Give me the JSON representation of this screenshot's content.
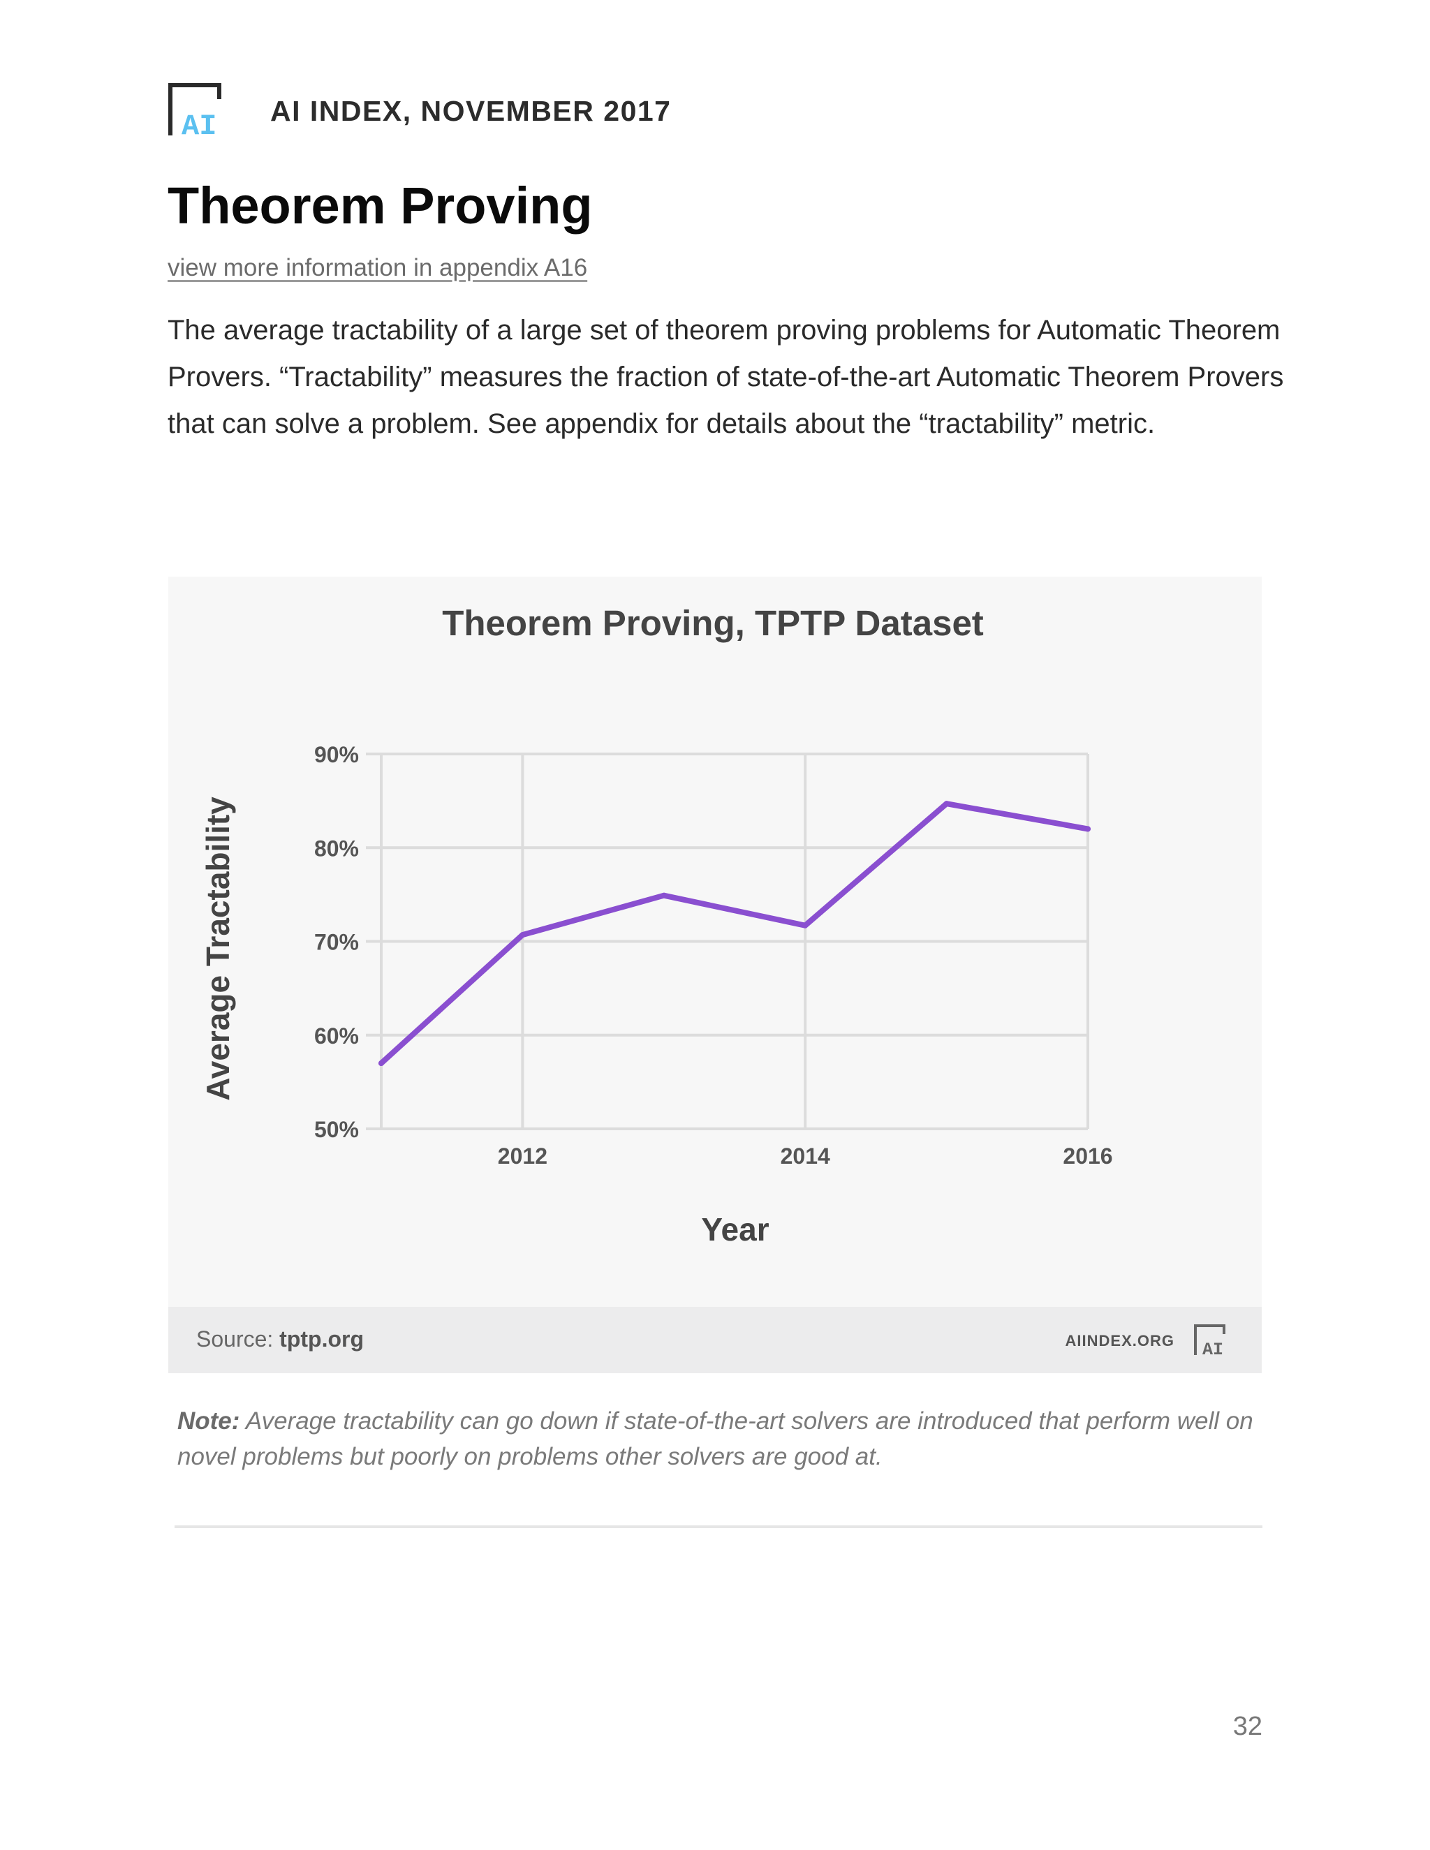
{
  "header": {
    "brand": "AI INDEX, NOVEMBER 2017",
    "logo_text": "AI"
  },
  "page": {
    "title": "Theorem Proving",
    "appendix_link": "view more information in appendix A16",
    "intro": "The average tractability of a large set of theorem proving problems for Automatic Theorem Provers. “Tractability” measures the fraction of state-of-the-art Automatic Theorem Provers that can solve a problem. See appendix for details about the “tractability” metric.",
    "page_number": "32"
  },
  "chart_footer": {
    "source_label": "Source:",
    "source_value": "tptp.org",
    "site": "AIINDEX.ORG"
  },
  "note": {
    "label": "Note:",
    "text": "Average tractability can go down if state-of-the-art solvers are introduced that perform well on novel problems but poorly on problems other solvers are good at."
  },
  "colors": {
    "line": "#8a4fd0",
    "grid": "#dcdcdc",
    "logo_blue": "#5bc0f0"
  },
  "chart_data": {
    "type": "line",
    "title": "Theorem Proving, TPTP Dataset",
    "xlabel": "Year",
    "ylabel": "Average Tractability",
    "x": [
      2011,
      2012,
      2013,
      2014,
      2015,
      2016
    ],
    "series": [
      {
        "values": [
          0.57,
          0.707,
          0.749,
          0.717,
          0.847,
          0.82
        ]
      }
    ],
    "xlim": [
      2011,
      2016
    ],
    "ylim": [
      0.5,
      0.9
    ],
    "xticks": [
      2012,
      2014,
      2016
    ],
    "yticks": [
      0.5,
      0.6,
      0.7,
      0.8,
      0.9
    ],
    "ytick_labels": [
      "50%",
      "60%",
      "70%",
      "80%",
      "90%"
    ],
    "grid": true,
    "legend": "none"
  }
}
